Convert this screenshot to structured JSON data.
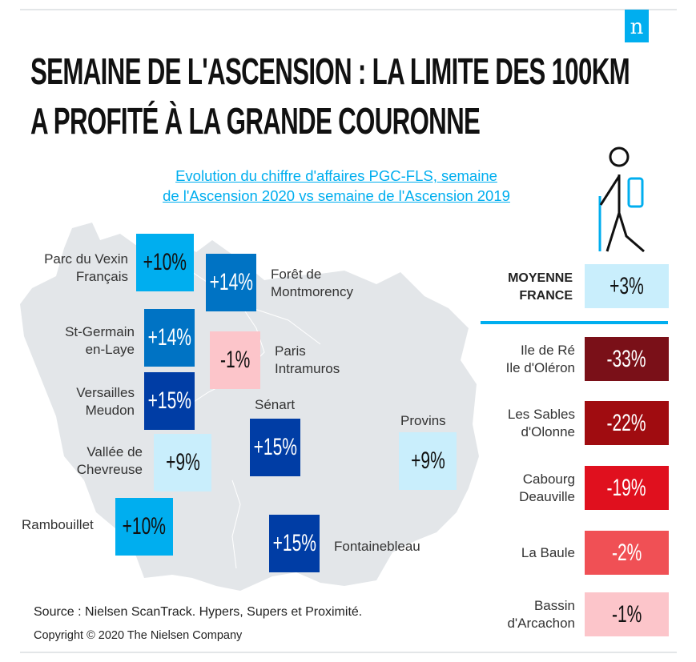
{
  "logo": "n",
  "title": {
    "line1": "SEMAINE DE L'ASCENSION : LA LIMITE DES 100KM",
    "line2": "A PROFITÉ À LA GRANDE COURONNE"
  },
  "subtitle": {
    "line1": "Evolution du chiffre d'affaires PGC-FLS, semaine",
    "line2": "de l'Ascension 2020 vs semaine de l'Ascension 2019"
  },
  "colors": {
    "accent": "#00aeef",
    "blue_mid": "#0073c4",
    "blue_dark": "#003da5",
    "blue_light": "#c9eefc",
    "pink": "#fcc5ca",
    "red_dark": "#7a1018",
    "red": "#a00c10",
    "red_bright": "#e0101e",
    "red_soft": "#f05055"
  },
  "map_regions": [
    {
      "name_line1": "Parc du Vexin",
      "name_line2": "Français",
      "value": "+10%"
    },
    {
      "name_line1": "Forêt de",
      "name_line2": "Montmorency",
      "value": "+14%"
    },
    {
      "name_line1": "St-Germain",
      "name_line2": "en-Laye",
      "value": "+14%"
    },
    {
      "name_line1": "Paris",
      "name_line2": "Intramuros",
      "value": "-1%"
    },
    {
      "name_line1": "Versailles",
      "name_line2": "Meudon",
      "value": "+15%"
    },
    {
      "name_line1": "Sénart",
      "name_line2": "",
      "value": "+15%"
    },
    {
      "name_line1": "Vallée de",
      "name_line2": "Chevreuse",
      "value": "+9%"
    },
    {
      "name_line1": "Provins",
      "name_line2": "",
      "value": "+9%"
    },
    {
      "name_line1": "Rambouillet",
      "name_line2": "",
      "value": "+10%"
    },
    {
      "name_line1": "Fontainebleau",
      "name_line2": "",
      "value": "+15%"
    }
  ],
  "average": {
    "line1": "MOYENNE",
    "line2": "FRANCE",
    "value": "+3%"
  },
  "coastal": [
    {
      "line1": "Ile de Ré",
      "line2": "Ile d'Oléron",
      "value": "-33%"
    },
    {
      "line1": "Les Sables",
      "line2": "d'Olonne",
      "value": "-22%"
    },
    {
      "line1": "Cabourg",
      "line2": "Deauville",
      "value": "-19%"
    },
    {
      "line1": "La Baule",
      "line2": "",
      "value": "-2%"
    },
    {
      "line1": "Bassin",
      "line2": "d'Arcachon",
      "value": "-1%"
    }
  ],
  "source": "Source : Nielsen ScanTrack. Hypers, Supers et Proximité.",
  "copyright": "Copyright © 2020 The Nielsen Company"
}
